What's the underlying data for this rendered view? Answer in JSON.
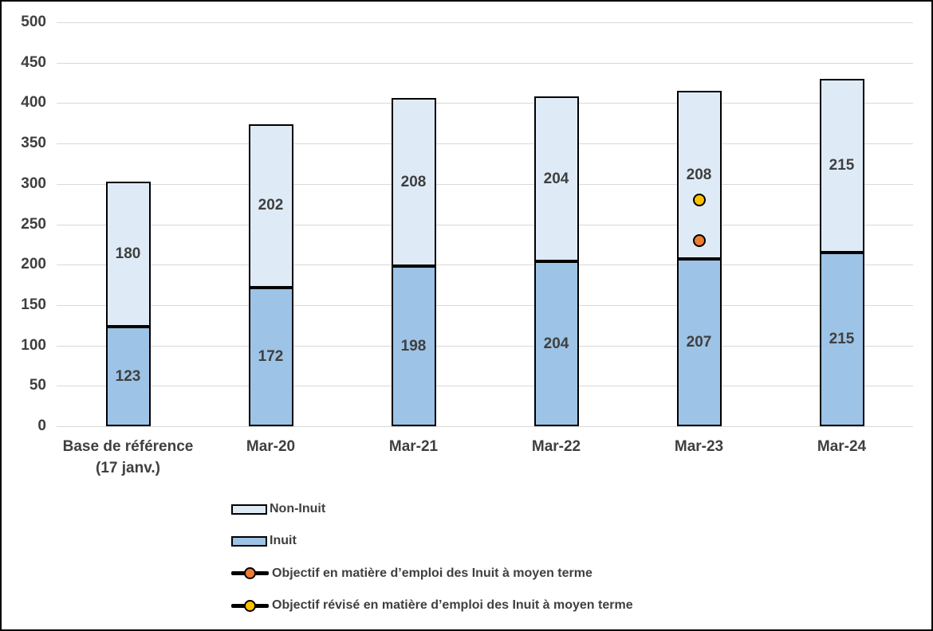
{
  "chart_data": {
    "type": "bar",
    "subtype": "stacked-column",
    "title": "",
    "categories": [
      {
        "lines": [
          "Base de référence",
          "(17 janv.)"
        ]
      },
      {
        "lines": [
          "Mar-20"
        ]
      },
      {
        "lines": [
          "Mar-21"
        ]
      },
      {
        "lines": [
          "Mar-22"
        ]
      },
      {
        "lines": [
          "Mar-23"
        ]
      },
      {
        "lines": [
          "Mar-24"
        ]
      }
    ],
    "series": [
      {
        "name": "Inuit",
        "color": "#9DC3E6",
        "values": [
          123,
          172,
          198,
          204,
          207,
          215
        ]
      },
      {
        "name": "Non-Inuit",
        "color": "#DEEBF7",
        "values": [
          180,
          202,
          208,
          204,
          208,
          215
        ]
      }
    ],
    "stack_totals": [
      303,
      374,
      406,
      408,
      415,
      430
    ],
    "markers": [
      {
        "name": "Objectif en matière d’emploi des Inuit à moyen terme",
        "color": "#ED7D31",
        "category_index": 4,
        "value": 230
      },
      {
        "name": "Objectif révisé en matière d’emploi des Inuit à moyen terme",
        "color": "#FFC000",
        "category_index": 4,
        "value": 280
      }
    ],
    "y_axis": {
      "min": 0,
      "max": 500,
      "step": 50,
      "tick_labels": [
        "0",
        "50",
        "100",
        "150",
        "200",
        "250",
        "300",
        "350",
        "400",
        "450",
        "500"
      ]
    },
    "xlabel": "",
    "ylabel": "",
    "grid": true,
    "legend_position": "bottom-left",
    "legend": [
      {
        "label": "Non-Inuit",
        "type": "box",
        "color": "#DEEBF7"
      },
      {
        "label": "Inuit",
        "type": "box",
        "color": "#9DC3E6"
      },
      {
        "label": "Objectif en matière d’emploi des Inuit à moyen terme",
        "type": "line-marker",
        "color": "#ED7D31"
      },
      {
        "label": "Objectif révisé en matière d’emploi des Inuit à moyen terme",
        "type": "line-marker",
        "color": "#FFC000"
      }
    ],
    "colors": {
      "gridline": "#D9D9D9",
      "text": "#3F3F3F",
      "bar_border": "#000000",
      "frame_border": "#000000",
      "background": "#FFFFFF"
    }
  }
}
